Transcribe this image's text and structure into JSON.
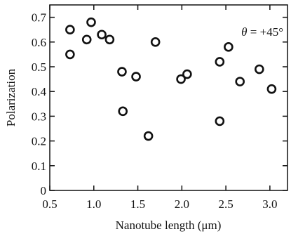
{
  "chart_data": {
    "type": "scatter",
    "title": "",
    "xlabel": "Nanotube length (μm)",
    "ylabel": "Polarization",
    "xlim": [
      0.5,
      3.2
    ],
    "ylim": [
      0,
      0.75
    ],
    "xticks": [
      0.5,
      1.0,
      1.5,
      2.0,
      2.5,
      3.0
    ],
    "xtick_labels": [
      "0.5",
      "1.0",
      "1.5",
      "2.0",
      "2.5",
      "3.0"
    ],
    "yticks": [
      0,
      0.1,
      0.2,
      0.3,
      0.4,
      0.5,
      0.6,
      0.7
    ],
    "ytick_labels": [
      "0",
      "0.1",
      "0.2",
      "0.3",
      "0.4",
      "0.5",
      "0.6",
      "0.7"
    ],
    "grid": false,
    "marker": "open-circle",
    "annotation": {
      "symbol": "θ",
      "text": " = +45°"
    },
    "series": [
      {
        "points": [
          {
            "x": 0.73,
            "y": 0.65
          },
          {
            "x": 0.73,
            "y": 0.55
          },
          {
            "x": 0.92,
            "y": 0.61
          },
          {
            "x": 0.97,
            "y": 0.68
          },
          {
            "x": 1.09,
            "y": 0.63
          },
          {
            "x": 1.18,
            "y": 0.61
          },
          {
            "x": 1.32,
            "y": 0.48
          },
          {
            "x": 1.33,
            "y": 0.32
          },
          {
            "x": 1.48,
            "y": 0.46
          },
          {
            "x": 1.62,
            "y": 0.22
          },
          {
            "x": 1.7,
            "y": 0.6
          },
          {
            "x": 1.99,
            "y": 0.45
          },
          {
            "x": 2.06,
            "y": 0.47
          },
          {
            "x": 2.43,
            "y": 0.52
          },
          {
            "x": 2.43,
            "y": 0.28
          },
          {
            "x": 2.53,
            "y": 0.58
          },
          {
            "x": 2.66,
            "y": 0.44
          },
          {
            "x": 2.88,
            "y": 0.49
          },
          {
            "x": 3.02,
            "y": 0.41
          }
        ]
      }
    ]
  }
}
